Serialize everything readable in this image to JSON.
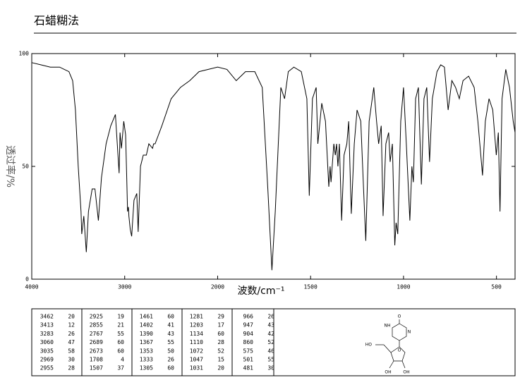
{
  "chart_data": {
    "type": "line",
    "title": "石蜡糊法",
    "x_label": "波数/cm⁻¹",
    "y_label": "透过率/%",
    "xlim": [
      4000,
      400
    ],
    "xticks": [
      4000,
      3000,
      2000,
      1500,
      1000,
      500
    ],
    "x_scale_break": 2000,
    "x_scale_factor": 2,
    "ylim": [
      0,
      100
    ],
    "yticks": [
      0,
      50,
      100
    ],
    "color": "#000000",
    "x": [
      4000,
      3900,
      3800,
      3700,
      3650,
      3600,
      3560,
      3530,
      3500,
      3470,
      3462,
      3440,
      3413,
      3390,
      3350,
      3320,
      3283,
      3250,
      3200,
      3150,
      3100,
      3060,
      3050,
      3035,
      3010,
      2990,
      2969,
      2960,
      2955,
      2940,
      2925,
      2900,
      2870,
      2855,
      2830,
      2800,
      2767,
      2740,
      2700,
      2689,
      2673,
      2600,
      2500,
      2400,
      2300,
      2200,
      2100,
      2000,
      1950,
      1900,
      1850,
      1800,
      1760,
      1730,
      1708,
      1690,
      1660,
      1640,
      1620,
      1590,
      1550,
      1520,
      1507,
      1490,
      1470,
      1461,
      1440,
      1420,
      1402,
      1395,
      1390,
      1375,
      1367,
      1360,
      1353,
      1345,
      1333,
      1320,
      1305,
      1295,
      1281,
      1265,
      1250,
      1230,
      1215,
      1203,
      1185,
      1160,
      1145,
      1134,
      1120,
      1110,
      1095,
      1080,
      1072,
      1060,
      1047,
      1040,
      1031,
      1015,
      1000,
      985,
      966,
      955,
      947,
      935,
      920,
      904,
      890,
      875,
      860,
      845,
      820,
      800,
      780,
      760,
      740,
      720,
      700,
      680,
      650,
      620,
      600,
      575,
      560,
      540,
      520,
      501,
      490,
      481,
      470,
      450,
      430,
      410,
      400
    ],
    "values": [
      96,
      95,
      94,
      94,
      93,
      92,
      88,
      75,
      50,
      30,
      20,
      28,
      12,
      30,
      40,
      40,
      26,
      45,
      60,
      68,
      73,
      47,
      65,
      58,
      70,
      64,
      30,
      32,
      28,
      22,
      19,
      35,
      38,
      21,
      50,
      55,
      55,
      60,
      58,
      60,
      60,
      68,
      80,
      85,
      88,
      92,
      93,
      94,
      93,
      88,
      92,
      92,
      85,
      40,
      4,
      30,
      85,
      80,
      92,
      94,
      92,
      80,
      37,
      80,
      85,
      60,
      78,
      70,
      41,
      50,
      43,
      60,
      55,
      60,
      50,
      60,
      26,
      55,
      60,
      70,
      29,
      60,
      75,
      70,
      40,
      17,
      70,
      85,
      70,
      60,
      68,
      28,
      60,
      65,
      52,
      60,
      15,
      25,
      20,
      70,
      85,
      60,
      26,
      50,
      43,
      80,
      85,
      42,
      80,
      85,
      52,
      80,
      92,
      95,
      94,
      75,
      88,
      85,
      80,
      88,
      90,
      85,
      70,
      46,
      70,
      80,
      75,
      55,
      65,
      30,
      80,
      93,
      85,
      70,
      65
    ]
  },
  "peak_table": [
    [
      [
        3462,
        20
      ],
      [
        3413,
        12
      ],
      [
        3283,
        26
      ],
      [
        3060,
        47
      ],
      [
        3035,
        58
      ],
      [
        2969,
        30
      ],
      [
        2955,
        28
      ]
    ],
    [
      [
        2925,
        19
      ],
      [
        2855,
        21
      ],
      [
        2767,
        55
      ],
      [
        2689,
        60
      ],
      [
        2673,
        60
      ],
      [
        1708,
        4
      ],
      [
        1507,
        37
      ]
    ],
    [
      [
        1461,
        60
      ],
      [
        1402,
        41
      ],
      [
        1390,
        43
      ],
      [
        1367,
        55
      ],
      [
        1353,
        50
      ],
      [
        1333,
        26
      ],
      [
        1305,
        60
      ]
    ],
    [
      [
        1281,
        29
      ],
      [
        1203,
        17
      ],
      [
        1134,
        60
      ],
      [
        1110,
        28
      ],
      [
        1072,
        52
      ],
      [
        1047,
        15
      ],
      [
        1031,
        20
      ]
    ],
    [
      [
        966,
        26
      ],
      [
        947,
        43
      ],
      [
        904,
        42
      ],
      [
        860,
        52
      ],
      [
        575,
        46
      ],
      [
        501,
        55
      ],
      [
        481,
        30
      ]
    ]
  ],
  "structure": {
    "labels": [
      "O",
      "NH",
      "N",
      "HO",
      "O",
      "OH",
      "OH"
    ]
  }
}
